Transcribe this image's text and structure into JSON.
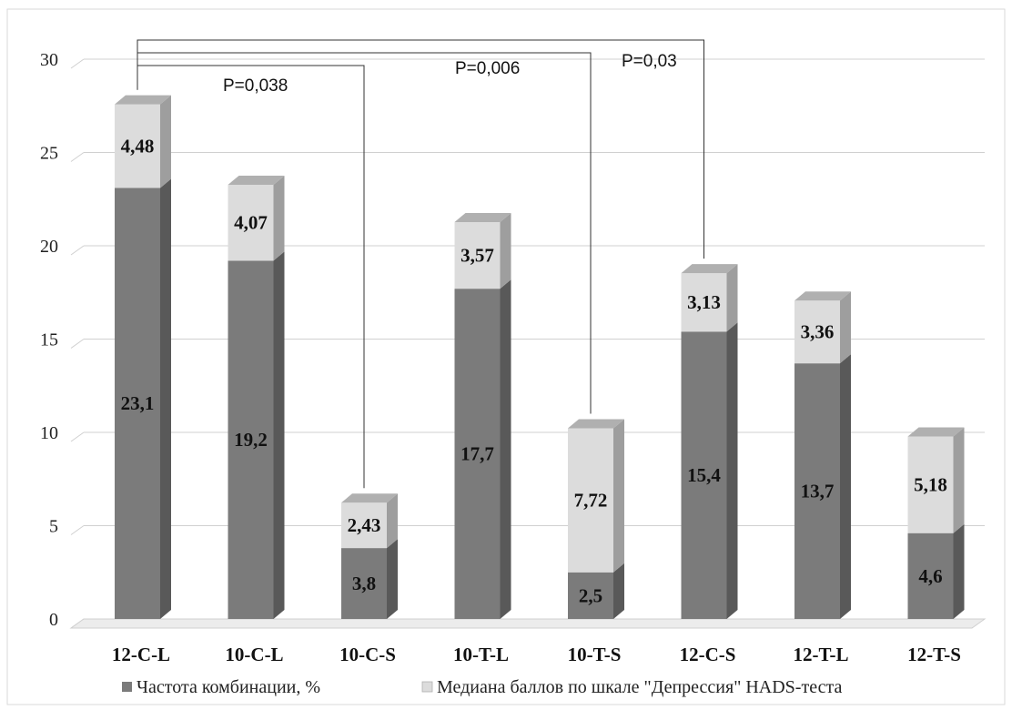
{
  "chart_data": {
    "type": "bar",
    "stacked": true,
    "style": "3d-column",
    "categories": [
      "12-C-L",
      "10-C-L",
      "10-C-S",
      "10-T-L",
      "10-T-S",
      "12-C-S",
      "12-T-L",
      "12-T-S"
    ],
    "series": [
      {
        "name": "Частота комбинации, %",
        "values": [
          23.1,
          19.2,
          3.8,
          17.7,
          2.5,
          15.4,
          13.7,
          4.6
        ]
      },
      {
        "name": "Медиана баллов по шкале \"Депрессия\" HADS-теста",
        "values": [
          4.48,
          4.07,
          2.43,
          3.57,
          7.72,
          3.13,
          3.36,
          5.18
        ]
      }
    ],
    "data_labels": {
      "base": [
        "23,1",
        "19,2",
        "3,8",
        "17,7",
        "2,5",
        "15,4",
        "13,7",
        "4,6"
      ],
      "top": [
        "4,48",
        "4,07",
        "2,43",
        "3,57",
        "7,72",
        "3,13",
        "3,36",
        "5,18"
      ]
    },
    "yticks": [
      "0",
      "5",
      "10",
      "15",
      "20",
      "25",
      "30"
    ],
    "ylim": [
      0,
      30
    ],
    "grid": true,
    "legend_position": "bottom",
    "colors": {
      "base": "#7b7b7b",
      "top": "#dcdcdc"
    },
    "annotations": [
      {
        "text": "P=0,038",
        "from": "12-C-L",
        "to": "10-C-S"
      },
      {
        "text": "P=0,006",
        "from": "12-C-L",
        "to": "10-T-S"
      },
      {
        "text": "P=0,03",
        "from": "12-C-L",
        "to": "12-C-S"
      }
    ]
  }
}
